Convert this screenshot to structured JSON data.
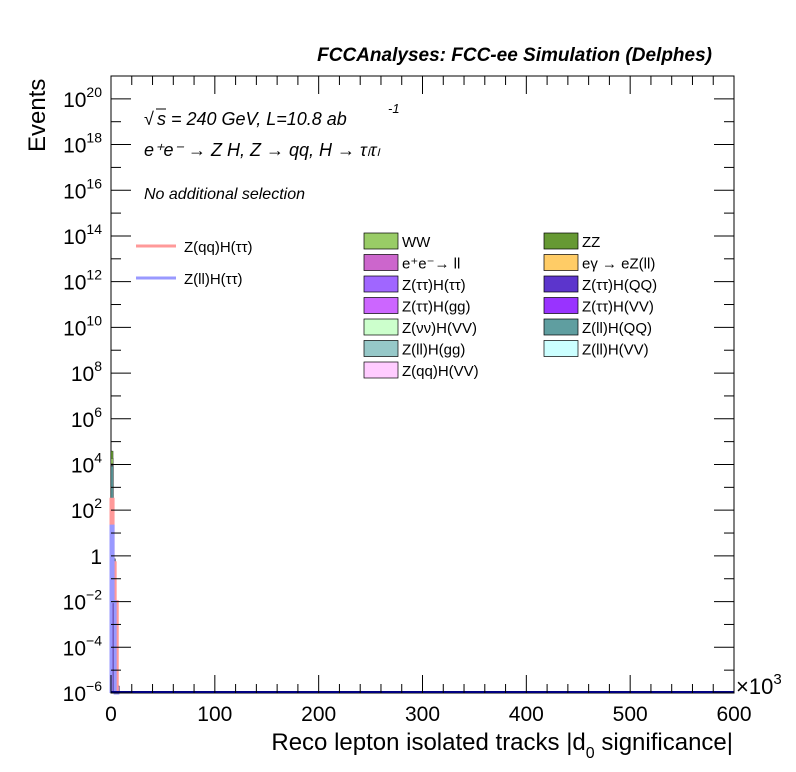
{
  "header": {
    "title": "FCCAnalyses: FCC-ee Simulation (Delphes)"
  },
  "annotations": {
    "sqrt_s": "s",
    "energy_lumi": " = 240 GeV, L=10.8 ab",
    "lumi_exp": "-1",
    "process": "e⁺e⁻ → Z H, Z → qq, H → τₗτₗ",
    "selection": "No additional selection"
  },
  "chart_data": {
    "type": "bar",
    "stacked": true,
    "xlabel": "Reco lepton isolated tracks |d",
    "xlabel_sub": "0",
    "xlabel_suffix": " significance|",
    "ylabel": "Events",
    "x_multiplier": "×10",
    "x_multiplier_exp": "3",
    "xlim": [
      0,
      600
    ],
    "ylim": [
      1e-06,
      1e+21
    ],
    "yscale": "log",
    "x_ticks": [
      0,
      100,
      200,
      300,
      400,
      500,
      600
    ],
    "x_tick_labels": [
      "0",
      "100",
      "200",
      "300",
      "400",
      "500",
      "600"
    ],
    "y_ticks": [
      {
        "base": "10",
        "exp": "−6",
        "value": 1e-06
      },
      {
        "base": "10",
        "exp": "−4",
        "value": 0.0001
      },
      {
        "base": "10",
        "exp": "−2",
        "value": 0.01
      },
      {
        "base": "1",
        "exp": "",
        "value": 1
      },
      {
        "base": "10",
        "exp": "2",
        "value": 100.0
      },
      {
        "base": "10",
        "exp": "4",
        "value": 10000.0
      },
      {
        "base": "10",
        "exp": "6",
        "value": 1000000.0
      },
      {
        "base": "10",
        "exp": "8",
        "value": 100000000.0
      },
      {
        "base": "10",
        "exp": "10",
        "value": 10000000000.0
      },
      {
        "base": "10",
        "exp": "12",
        "value": 1000000000000.0
      },
      {
        "base": "10",
        "exp": "14",
        "value": 100000000000000.0
      },
      {
        "base": "10",
        "exp": "16",
        "value": 1e+16
      },
      {
        "base": "10",
        "exp": "18",
        "value": 1e+18
      },
      {
        "base": "10",
        "exp": "20",
        "value": 1e+20
      }
    ],
    "bin_edges": [
      0,
      2,
      4,
      6,
      8
    ],
    "stack": [
      {
        "name": "Z(ττ)H(ττ)",
        "color": "#a066ff",
        "values": [
          100.0,
          0.3,
          0.005,
          2e-06
        ]
      },
      {
        "name": "Z(ττ)H(gg)",
        "color": "#cc66ff",
        "values": [
          30.0,
          0.02,
          0.001,
          0
        ]
      },
      {
        "name": "Z(ττ)H(QQ)",
        "color": "#5c35cc",
        "values": [
          40.0,
          0.2,
          0,
          0
        ]
      },
      {
        "name": "Z(ττ)H(VV)",
        "color": "#9933ff",
        "values": [
          6.0,
          0.1,
          0,
          0
        ]
      },
      {
        "name": "Z(νν)H(VV)",
        "color": "#ccffcc",
        "values": [
          40.0,
          0.001,
          0,
          0
        ]
      },
      {
        "name": "Z(ll)H(QQ)",
        "color": "#5f9ea0",
        "values": [
          8000.0,
          0.1,
          0,
          0
        ]
      },
      {
        "name": "Z(ll)H(gg)",
        "color": "#96c8c8",
        "values": [
          500.0,
          0.01,
          0,
          0
        ]
      },
      {
        "name": "Z(ll)H(VV)",
        "color": "#ccffff",
        "values": [
          400.0,
          0.001,
          0,
          0
        ]
      },
      {
        "name": "Z(qq)H(VV)",
        "color": "#ffccff",
        "values": [
          300.0,
          0.001,
          0,
          0
        ]
      },
      {
        "name": "e⁺e⁻→ ll",
        "color": "#cc66cc",
        "values": [
          500.0,
          0,
          0,
          0
        ]
      },
      {
        "name": "eγ → eZ(ll)",
        "color": "#ffcc66",
        "values": [
          800.0,
          0,
          0,
          0
        ]
      },
      {
        "name": "WW",
        "color": "#99cc66",
        "values": [
          8000.0,
          0,
          0,
          0
        ]
      },
      {
        "name": "ZZ",
        "color": "#669933",
        "values": [
          20000.0,
          0,
          0,
          0
        ]
      }
    ],
    "signals": [
      {
        "name": "Z(qq)H(ττ)",
        "color": "#ff9999",
        "values": [
          300.0,
          0.5,
          0.01,
          0
        ]
      },
      {
        "name": "Z(ll)H(ττ)",
        "color": "#9999ff",
        "values": [
          20.0,
          0.01,
          0,
          0
        ]
      }
    ],
    "legend_signal": [
      {
        "label": "Z(qq)H(ττ)",
        "color": "#ff9999"
      },
      {
        "label": "Z(ll)H(ττ)",
        "color": "#9999ff"
      }
    ],
    "legend_bkg_col1": [
      {
        "label": "WW",
        "color": "#99cc66"
      },
      {
        "label": "e⁺e⁻→ ll",
        "color": "#cc66cc"
      },
      {
        "label": "Z(ττ)H(ττ)",
        "color": "#a066ff"
      },
      {
        "label": "Z(ττ)H(gg)",
        "color": "#cc66ff"
      },
      {
        "label": "Z(νν)H(VV)",
        "color": "#ccffcc"
      },
      {
        "label": "Z(ll)H(gg)",
        "color": "#96c8c8"
      },
      {
        "label": "Z(qq)H(VV)",
        "color": "#ffccff"
      }
    ],
    "legend_bkg_col2": [
      {
        "label": "ZZ",
        "color": "#669933"
      },
      {
        "label": "eγ → eZ(ll)",
        "color": "#ffcc66"
      },
      {
        "label": "Z(ττ)H(QQ)",
        "color": "#5c35cc"
      },
      {
        "label": "Z(ττ)H(VV)",
        "color": "#9933ff"
      },
      {
        "label": "Z(ll)H(QQ)",
        "color": "#5f9ea0"
      },
      {
        "label": "Z(ll)H(VV)",
        "color": "#ccffff"
      }
    ],
    "baseline_color": "#000080"
  }
}
